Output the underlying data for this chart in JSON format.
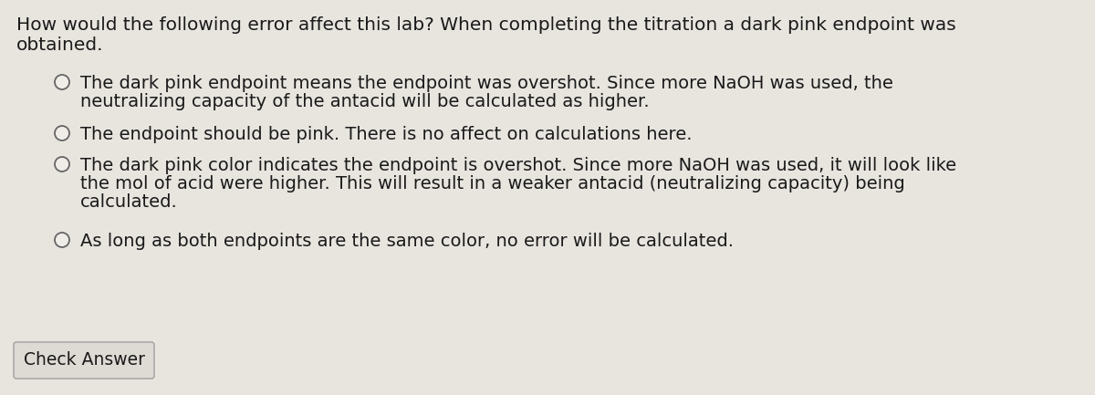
{
  "bg_color": "#e8e5df",
  "text_color": "#1a1a1a",
  "question_line1": "How would the following error affect this lab? When completing the titration a dark pink endpoint was",
  "question_line2": "obtained.",
  "options": [
    {
      "lines": [
        "The dark pink endpoint means the endpoint was overshot. Since more NaOH was used, the",
        "neutralizing capacity of the antacid will be calculated as higher."
      ]
    },
    {
      "lines": [
        "The endpoint should be pink. There is no affect on calculations here."
      ]
    },
    {
      "lines": [
        "The dark pink color indicates the endpoint is overshot. Since more NaOH was used, it will look like",
        "the mol of acid were higher. This will result in a weaker antacid (neutralizing capacity) being",
        "calculated."
      ]
    },
    {
      "lines": [
        "As long as both endpoints are the same color, no error will be calculated."
      ]
    }
  ],
  "circle_fill": "#f0ede8",
  "circle_edge": "#666666",
  "button_text": "Check Answer",
  "button_bg": "#dedad4",
  "button_edge": "#aaaaaa",
  "question_fontsize": 14.5,
  "option_fontsize": 14.0,
  "button_fontsize": 13.5
}
